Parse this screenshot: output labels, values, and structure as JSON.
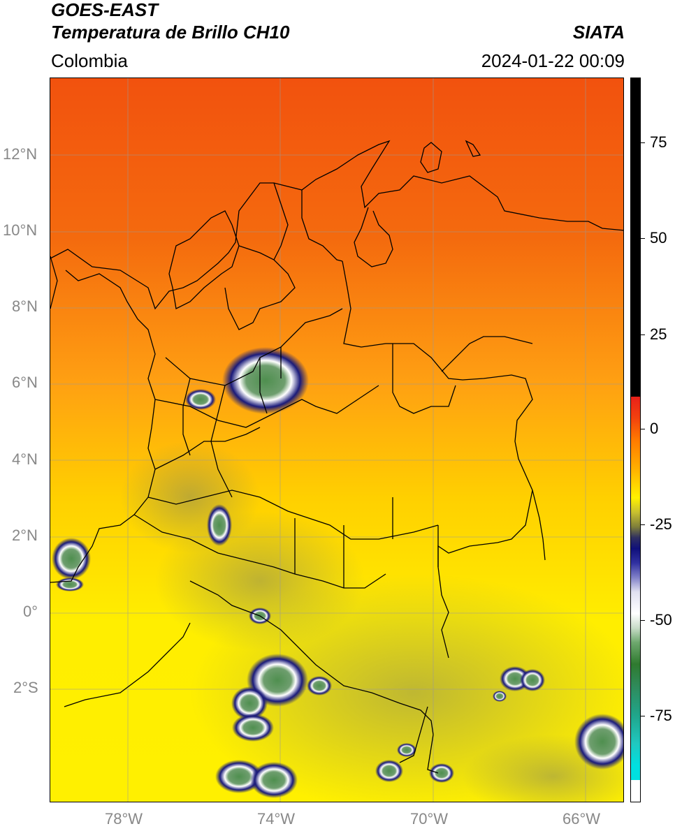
{
  "header": {
    "satellite": "GOES-EAST",
    "product": "Temperatura de Brillo CH10",
    "region": "Colombia",
    "agency": "SIATA",
    "datetime": "2024-01-22 00:09"
  },
  "axes": {
    "lat_labels": [
      "12°N",
      "10°N",
      "8°N",
      "6°N",
      "4°N",
      "2°N",
      "0°",
      "2°S"
    ],
    "lon_labels": [
      "78°W",
      "74°W",
      "70°W",
      "66°W"
    ]
  },
  "colorbar": {
    "labels": [
      "75",
      "50",
      "25",
      "0",
      "-25",
      "-50",
      "-75"
    ],
    "colors": {
      "black": "#000000",
      "red": "#e8201a",
      "orange": "#ff8a00",
      "yellow": "#fff200",
      "olive": "#7f7f3a",
      "navy": "#10107a",
      "white": "#ffffff",
      "green": "#2f7a2f",
      "teal": "#20a58a",
      "cyan": "#00e0e0"
    }
  },
  "map": {
    "colors": {
      "north": "#f25a10",
      "mid": "#ff9a10",
      "south": "#ffe600",
      "land_line": "#000000"
    }
  }
}
